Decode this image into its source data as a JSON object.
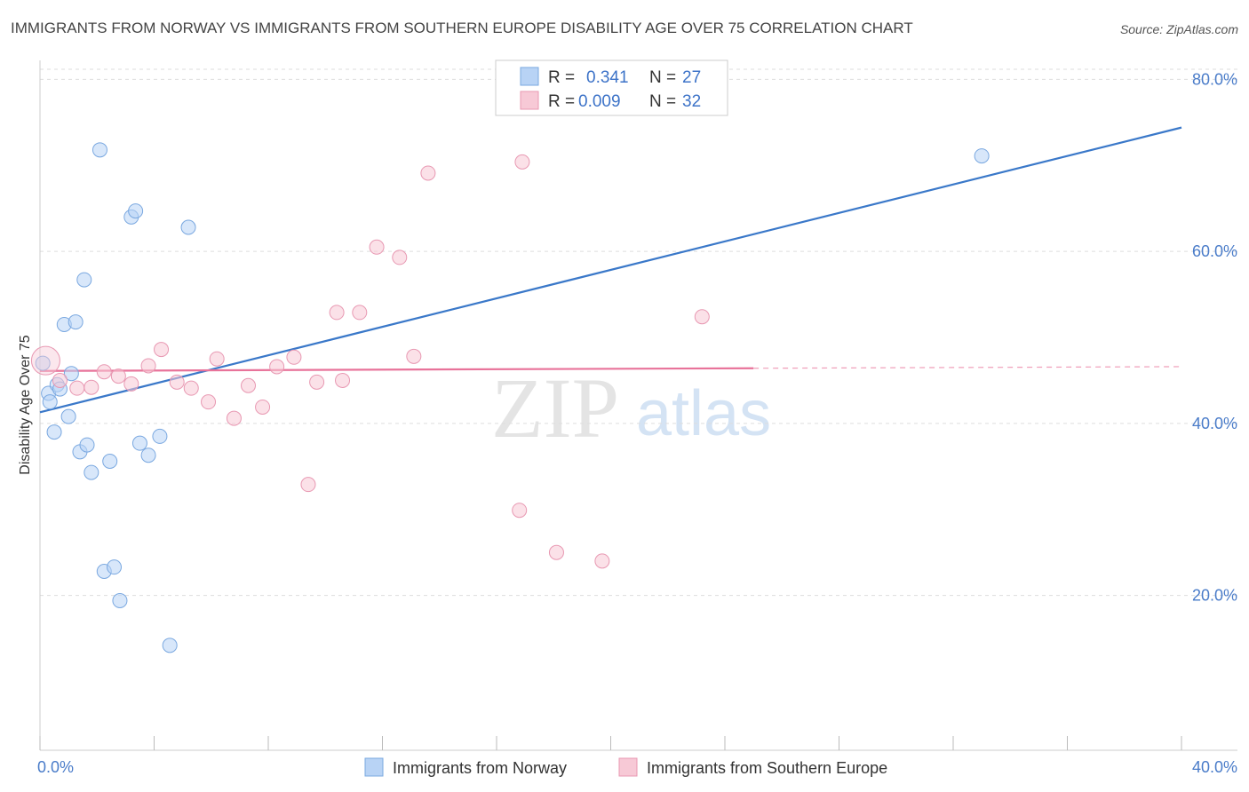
{
  "title": "IMMIGRANTS FROM NORWAY VS IMMIGRANTS FROM SOUTHERN EUROPE DISABILITY AGE OVER 75 CORRELATION CHART",
  "source": "Source: ZipAtlas.com",
  "watermark": {
    "zip": "ZIP",
    "atlas": "atlas"
  },
  "colors": {
    "norway_fill": "#b8d3f5",
    "norway_stroke": "#7aa8e0",
    "norway_line": "#3a78c9",
    "se_fill": "#f7c9d6",
    "se_stroke": "#e898b2",
    "se_line": "#e8739a",
    "grid": "#dddddd",
    "label": "#4a7cc9"
  },
  "legend_top": {
    "norway": {
      "r_label": "R =",
      "r_value": "0.341",
      "n_label": "N =",
      "n_value": "27"
    },
    "se": {
      "r_label": "R =",
      "r_value": "0.009",
      "n_label": "N =",
      "n_value": "32"
    }
  },
  "chart_data": {
    "type": "scatter",
    "xlabel": "",
    "ylabel": "Disability Age Over 75",
    "xlim": [
      0,
      40
    ],
    "ylim": [
      2,
      82
    ],
    "x_tick_labels": [
      "0.0%",
      "40.0%"
    ],
    "y_ticks": [
      20,
      40,
      60,
      80
    ],
    "y_tick_labels": [
      "20.0%",
      "40.0%",
      "60.0%",
      "80.0%"
    ],
    "grid": true,
    "legend": "top-center",
    "series": [
      {
        "name": "Immigrants from Norway",
        "trend": {
          "x": [
            0,
            40
          ],
          "y": [
            41.3,
            74.4
          ],
          "dashed_from": null
        },
        "points": [
          {
            "x": 0.1,
            "y": 47.0
          },
          {
            "x": 0.3,
            "y": 43.5
          },
          {
            "x": 0.35,
            "y": 42.5
          },
          {
            "x": 0.5,
            "y": 39.0
          },
          {
            "x": 0.6,
            "y": 44.5
          },
          {
            "x": 0.7,
            "y": 44.0
          },
          {
            "x": 0.85,
            "y": 51.5
          },
          {
            "x": 1.0,
            "y": 40.8
          },
          {
            "x": 1.1,
            "y": 45.8
          },
          {
            "x": 1.25,
            "y": 51.8
          },
          {
            "x": 1.4,
            "y": 36.7
          },
          {
            "x": 1.55,
            "y": 56.7
          },
          {
            "x": 1.65,
            "y": 37.5
          },
          {
            "x": 1.8,
            "y": 34.3
          },
          {
            "x": 2.1,
            "y": 71.8
          },
          {
            "x": 2.25,
            "y": 22.8
          },
          {
            "x": 2.45,
            "y": 35.6
          },
          {
            "x": 2.6,
            "y": 23.3
          },
          {
            "x": 2.8,
            "y": 19.4
          },
          {
            "x": 3.2,
            "y": 64.0
          },
          {
            "x": 3.35,
            "y": 64.7
          },
          {
            "x": 3.5,
            "y": 37.7
          },
          {
            "x": 3.8,
            "y": 36.3
          },
          {
            "x": 4.2,
            "y": 38.5
          },
          {
            "x": 4.55,
            "y": 14.2
          },
          {
            "x": 5.2,
            "y": 62.8
          },
          {
            "x": 33.0,
            "y": 71.1
          }
        ]
      },
      {
        "name": "Immigrants from Southern Europe",
        "trend": {
          "x": [
            0,
            40
          ],
          "y": [
            46.1,
            46.6
          ],
          "dashed_from": 25
        },
        "points": [
          {
            "x": 0.2,
            "y": 47.3,
            "big": true
          },
          {
            "x": 0.7,
            "y": 45.0
          },
          {
            "x": 1.3,
            "y": 44.1
          },
          {
            "x": 1.8,
            "y": 44.2
          },
          {
            "x": 2.25,
            "y": 46.0
          },
          {
            "x": 2.75,
            "y": 45.5
          },
          {
            "x": 3.2,
            "y": 44.6
          },
          {
            "x": 3.8,
            "y": 46.7
          },
          {
            "x": 4.25,
            "y": 48.6
          },
          {
            "x": 4.8,
            "y": 44.8
          },
          {
            "x": 5.3,
            "y": 44.1
          },
          {
            "x": 5.9,
            "y": 42.5
          },
          {
            "x": 6.2,
            "y": 47.5
          },
          {
            "x": 6.8,
            "y": 40.6
          },
          {
            "x": 7.3,
            "y": 44.4
          },
          {
            "x": 7.8,
            "y": 41.9
          },
          {
            "x": 8.3,
            "y": 46.6
          },
          {
            "x": 8.9,
            "y": 47.7
          },
          {
            "x": 9.4,
            "y": 32.9
          },
          {
            "x": 9.7,
            "y": 44.8
          },
          {
            "x": 10.4,
            "y": 52.9
          },
          {
            "x": 10.6,
            "y": 45.0
          },
          {
            "x": 11.2,
            "y": 52.9
          },
          {
            "x": 11.8,
            "y": 60.5
          },
          {
            "x": 12.6,
            "y": 59.3
          },
          {
            "x": 13.1,
            "y": 47.8
          },
          {
            "x": 13.6,
            "y": 69.1
          },
          {
            "x": 16.8,
            "y": 29.9
          },
          {
            "x": 16.9,
            "y": 70.4
          },
          {
            "x": 18.1,
            "y": 25.0
          },
          {
            "x": 19.7,
            "y": 24.0
          },
          {
            "x": 23.2,
            "y": 52.4
          }
        ]
      }
    ]
  }
}
